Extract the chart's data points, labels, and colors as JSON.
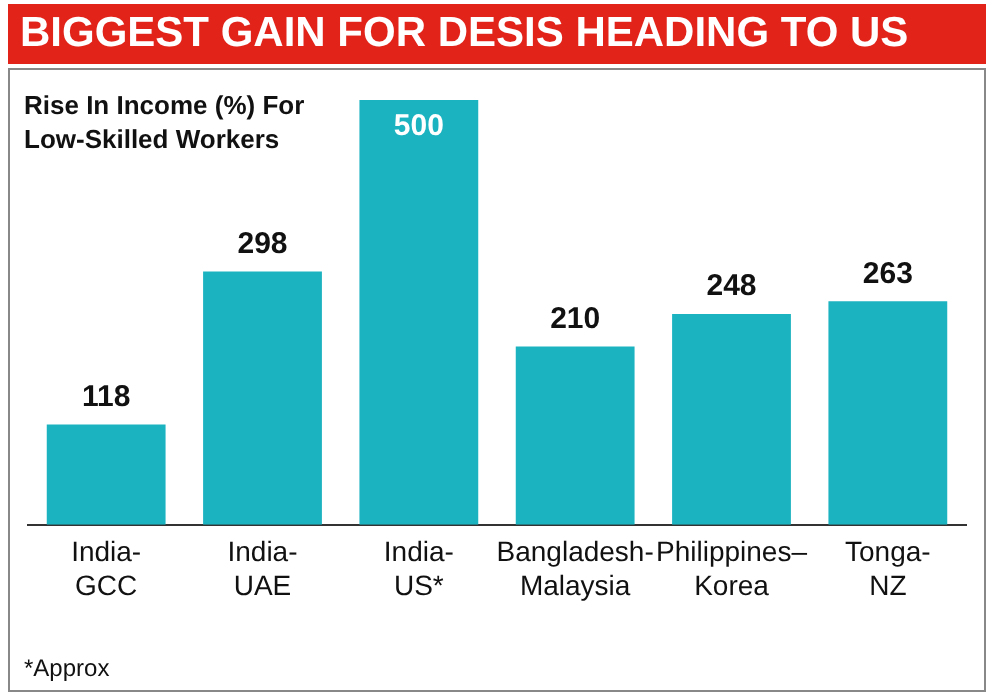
{
  "chart_data": {
    "type": "bar",
    "title": "BIGGEST GAIN FOR DESIS HEADING TO US",
    "subtitle": "Rise In Income (%) For Low-Skilled Workers",
    "categories": [
      "India-GCC",
      "India-UAE",
      "India-US*",
      "Bangladesh-Malaysia",
      "Philippines–Korea",
      "Tonga-NZ"
    ],
    "values": [
      118,
      298,
      500,
      210,
      248,
      263
    ],
    "color": "#1cb3c1",
    "data_labels": true,
    "grid": false,
    "legend": false,
    "annotations": [
      "*Approx"
    ]
  }
}
